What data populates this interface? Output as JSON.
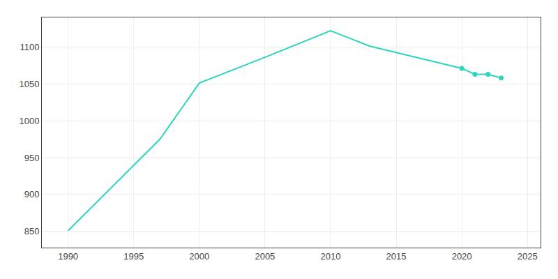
{
  "chart_data": {
    "type": "line",
    "x": [
      1990,
      1997,
      2000,
      2005,
      2010,
      2013,
      2020,
      2021,
      2022,
      2023
    ],
    "series": [
      {
        "type": "line",
        "color": "#2dd4bf",
        "line_style": "solid",
        "values": [
          851,
          975,
          1051,
          1086,
          1122,
          1101,
          1071,
          1063,
          1063,
          1058
        ]
      },
      {
        "type": "scatter",
        "color": "#2dd4bf",
        "marker": "circle",
        "values": [
          null,
          null,
          null,
          null,
          null,
          null,
          1071,
          1063,
          1063,
          1058
        ]
      }
    ],
    "xlim": [
      1988,
      2026
    ],
    "ylim": [
      828,
      1140
    ],
    "xticks": [
      1990,
      1995,
      2000,
      2005,
      2010,
      2015,
      2020,
      2025
    ],
    "yticks": [
      850,
      900,
      950,
      1000,
      1050,
      1100
    ],
    "grid": true
  }
}
